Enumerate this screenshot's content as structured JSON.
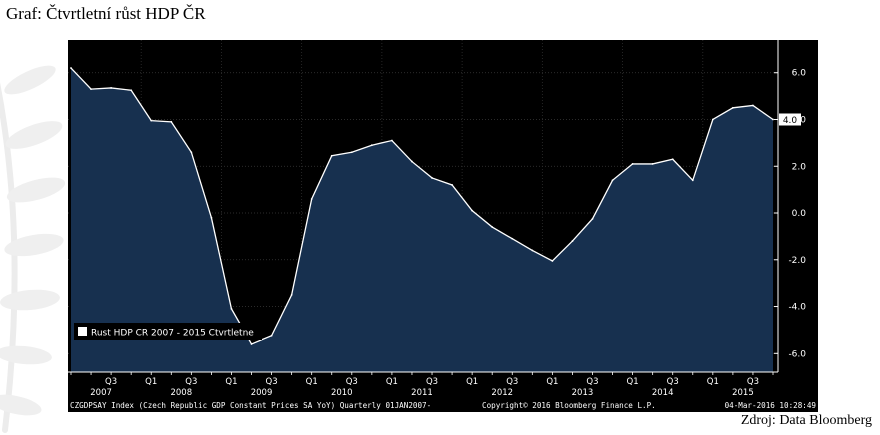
{
  "title": "Graf: Čtvrtletní růst HDP ČR",
  "source": "Zdroj: Data Bloomberg",
  "colors": {
    "background": "#000000",
    "area": "#17304f",
    "line": "#ffffff",
    "text": "#ffffff"
  },
  "chart_data": {
    "type": "area",
    "x": [
      "2007 Q1",
      "2007 Q2",
      "2007 Q3",
      "2007 Q4",
      "2008 Q1",
      "2008 Q2",
      "2008 Q3",
      "2008 Q4",
      "2009 Q1",
      "2009 Q2",
      "2009 Q3",
      "2009 Q4",
      "2010 Q1",
      "2010 Q2",
      "2010 Q3",
      "2010 Q4",
      "2011 Q1",
      "2011 Q2",
      "2011 Q3",
      "2011 Q4",
      "2012 Q1",
      "2012 Q2",
      "2012 Q3",
      "2012 Q4",
      "2013 Q1",
      "2013 Q2",
      "2013 Q3",
      "2013 Q4",
      "2014 Q1",
      "2014 Q2",
      "2014 Q3",
      "2014 Q4",
      "2015 Q1",
      "2015 Q2",
      "2015 Q3",
      "2015 Q4"
    ],
    "series": [
      {
        "name": "Rust HDP CR 2007 - 2015 Ctvrtletne",
        "values": [
          6.2,
          5.3,
          5.35,
          5.25,
          3.95,
          3.9,
          2.6,
          -0.2,
          -4.1,
          -5.6,
          -5.25,
          -3.5,
          0.6,
          2.45,
          2.6,
          2.9,
          3.1,
          2.2,
          1.5,
          1.2,
          0.1,
          -0.6,
          -1.1,
          -1.6,
          -2.05,
          -1.2,
          -0.25,
          1.4,
          2.1,
          2.1,
          2.3,
          1.4,
          4.0,
          4.5,
          4.6,
          4.0
        ]
      }
    ],
    "ylim": [
      -6.8,
      7.4
    ],
    "yticks": [
      "6.0",
      "4.0",
      "2.0",
      "0.0",
      "-2.0",
      "-4.0",
      "-6.0"
    ],
    "ytick_values": [
      6,
      4,
      2,
      0,
      -2,
      -4,
      -6
    ],
    "last_value_label": "4.0",
    "last_value": 4.0,
    "x_quarter_labels": [
      {
        "label": "Q3",
        "quarter": "2007 Q3"
      },
      {
        "label": "Q1",
        "quarter": "2008 Q1"
      },
      {
        "label": "Q3",
        "quarter": "2008 Q3"
      },
      {
        "label": "Q1",
        "quarter": "2009 Q1"
      },
      {
        "label": "Q3",
        "quarter": "2009 Q3"
      },
      {
        "label": "Q1",
        "quarter": "2010 Q1"
      },
      {
        "label": "Q3",
        "quarter": "2010 Q3"
      },
      {
        "label": "Q1",
        "quarter": "2011 Q1"
      },
      {
        "label": "Q3",
        "quarter": "2011 Q3"
      },
      {
        "label": "Q1",
        "quarter": "2012 Q1"
      },
      {
        "label": "Q3",
        "quarter": "2012 Q3"
      },
      {
        "label": "Q1",
        "quarter": "2013 Q1"
      },
      {
        "label": "Q3",
        "quarter": "2013 Q3"
      },
      {
        "label": "Q1",
        "quarter": "2014 Q1"
      },
      {
        "label": "Q3",
        "quarter": "2014 Q3"
      },
      {
        "label": "Q1",
        "quarter": "2015 Q1"
      },
      {
        "label": "Q3",
        "quarter": "2015 Q3"
      }
    ],
    "x_year_labels": [
      "2007",
      "2008",
      "2009",
      "2010",
      "2011",
      "2012",
      "2013",
      "2014",
      "2015"
    ],
    "legend": "Rust HDP CR 2007 - 2015 Ctvrtletne",
    "legend_position": "bottom-left",
    "footer_left": "CZGDPSAY Index (Czech Republic GDP Constant Prices SA YoY)  Quarterly 01JAN2007-",
    "footer_center": "Copyright© 2016 Bloomberg Finance L.P.",
    "footer_right": "04-Mar-2016 10:28:49",
    "grid": true
  }
}
